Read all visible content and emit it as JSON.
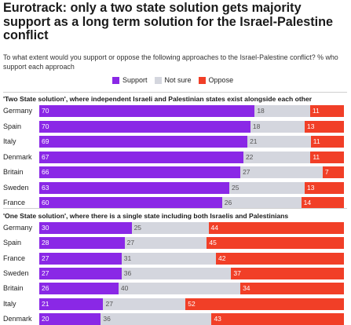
{
  "header": {
    "title": "Eurotrack: only a two state solution gets majority support as a long term solution for the Israel-Palestine conflict",
    "subtitle": "To what extent would you support or oppose the following approaches to the Israel-Palestine conflict? % who support each approach"
  },
  "legend": [
    {
      "name": "Support",
      "color": "#8a28e6"
    },
    {
      "name": "Not sure",
      "color": "#d4d6de"
    },
    {
      "name": "Oppose",
      "color": "#f13f27"
    }
  ],
  "chart_data": [
    {
      "type": "bar",
      "stacked": true,
      "orientation": "horizontal",
      "title": "'Two State solution', where independent Israeli and Palestinian states exist alongside each other",
      "categories": [
        "Germany",
        "Spain",
        "Italy",
        "Denmark",
        "Britain",
        "Sweden",
        "France"
      ],
      "series": [
        {
          "name": "Support",
          "values": [
            70,
            70,
            69,
            67,
            66,
            63,
            60
          ]
        },
        {
          "name": "Not sure",
          "values": [
            18,
            18,
            21,
            22,
            27,
            25,
            26
          ]
        },
        {
          "name": "Oppose",
          "values": [
            11,
            13,
            11,
            11,
            7,
            13,
            14
          ]
        }
      ]
    },
    {
      "type": "bar",
      "stacked": true,
      "orientation": "horizontal",
      "title": "'One State solution', where there is a single state including both Israelis and Palestinians",
      "categories": [
        "Germany",
        "Spain",
        "France",
        "Sweden",
        "Britain",
        "Italy",
        "Denmark"
      ],
      "series": [
        {
          "name": "Support",
          "values": [
            30,
            28,
            27,
            27,
            26,
            21,
            20
          ]
        },
        {
          "name": "Not sure",
          "values": [
            25,
            27,
            31,
            36,
            40,
            27,
            36
          ]
        },
        {
          "name": "Oppose",
          "values": [
            44,
            45,
            42,
            37,
            34,
            52,
            43
          ]
        }
      ]
    }
  ]
}
